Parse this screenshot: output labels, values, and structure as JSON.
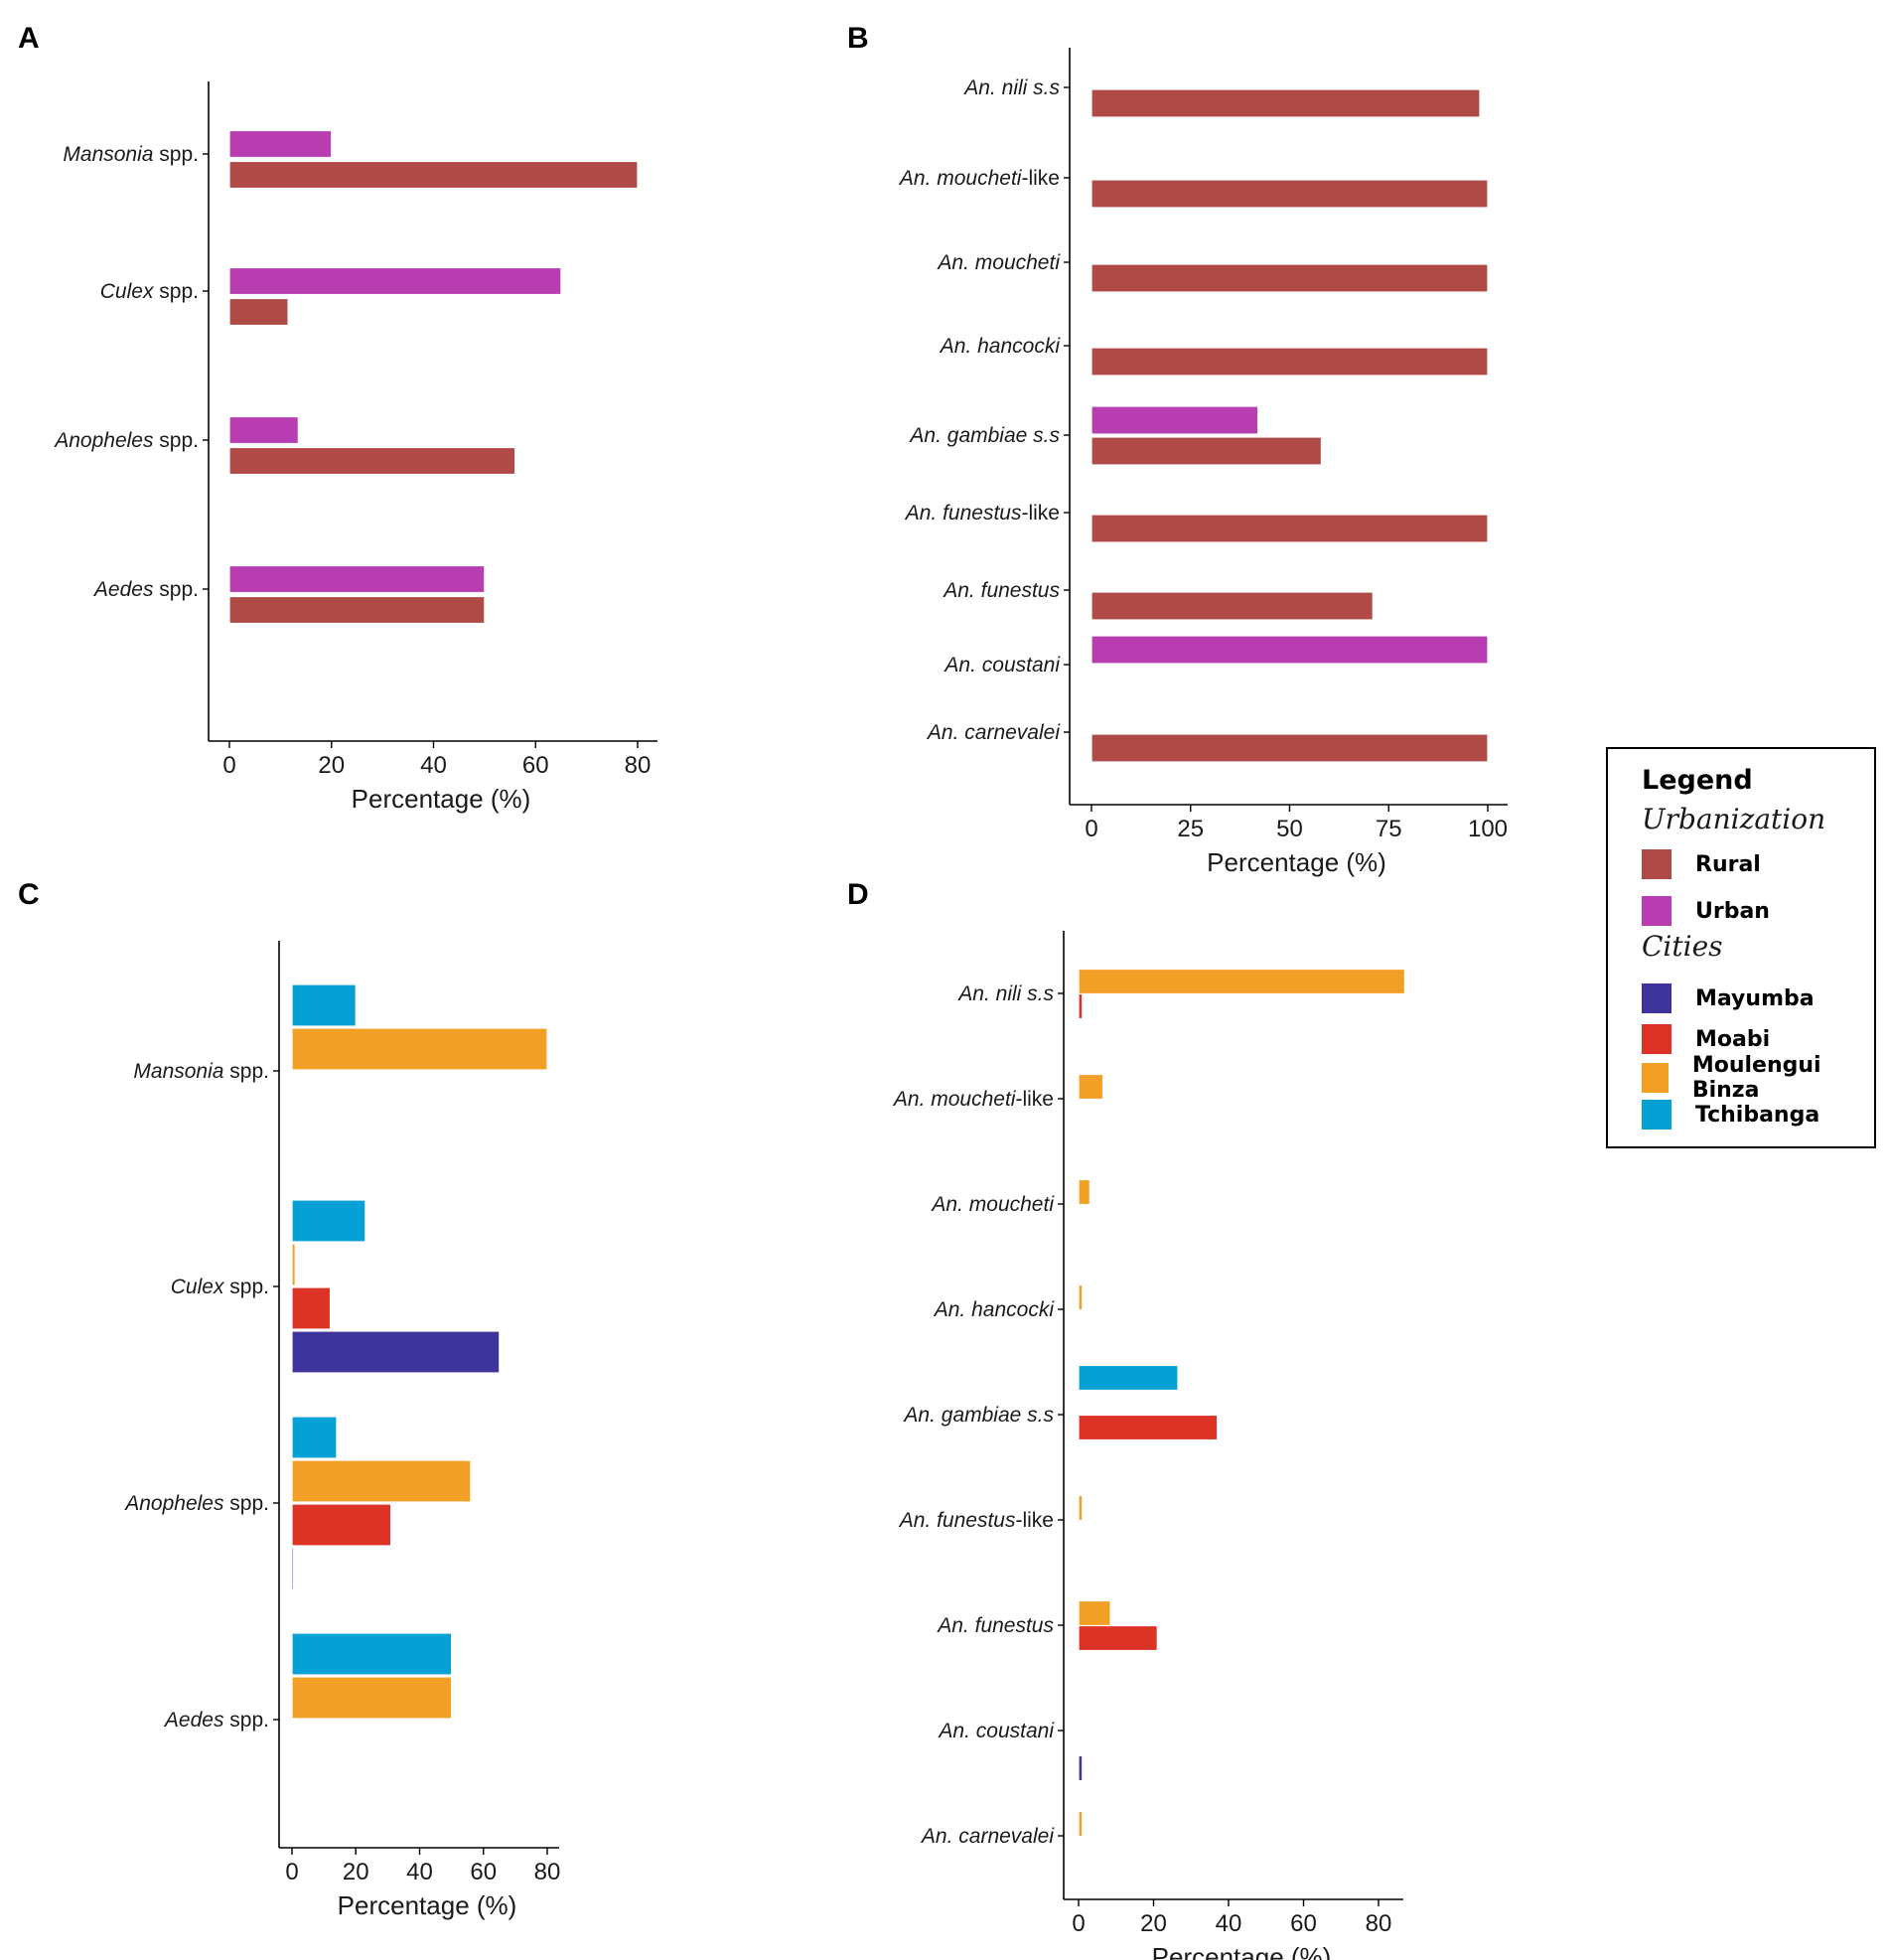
{
  "colors": {
    "Rural": "#b04a46",
    "Urban": "#b83db0",
    "Mayumba": "#3e349b",
    "Moabi": "#dd3327",
    "Moulengui Binza": "#f29f26",
    "Tchibanga": "#06a1d4"
  },
  "legend": {
    "title": "Legend",
    "groups": [
      {
        "title": "Urbanization",
        "items": [
          "Rural",
          "Urban"
        ]
      },
      {
        "title": "Cities",
        "items": [
          "Mayumba",
          "Moabi",
          "Moulengui Binza",
          "Tchibanga"
        ]
      }
    ]
  },
  "chart_data": [
    {
      "panel": "A",
      "type": "bar",
      "orientation": "horizontal",
      "xlabel": "Percentage (%)",
      "xlim": [
        0,
        82
      ],
      "xticks": [
        0,
        20,
        40,
        60,
        80
      ],
      "categories": [
        {
          "genus": "Mansonia",
          "suffix": " spp."
        },
        {
          "genus": "Culex",
          "suffix": " spp."
        },
        {
          "genus": "Anopheles",
          "suffix": " spp."
        },
        {
          "genus": "Aedes",
          "suffix": " spp."
        }
      ],
      "series": [
        {
          "name": "Urban",
          "values": [
            20,
            65,
            13.5,
            50
          ]
        },
        {
          "name": "Rural",
          "values": [
            80,
            11.5,
            56,
            50
          ]
        }
      ]
    },
    {
      "panel": "B",
      "type": "bar",
      "orientation": "horizontal",
      "xlabel": "Percentage (%)",
      "xlim": [
        0,
        102
      ],
      "xticks": [
        0,
        25,
        50,
        75,
        100
      ],
      "categories": [
        {
          "genus": "An. nili s.s",
          "suffix": ""
        },
        {
          "genus": "An. moucheti",
          "suffix": "-like"
        },
        {
          "genus": "An. moucheti",
          "suffix": ""
        },
        {
          "genus": "An. hancocki",
          "suffix": ""
        },
        {
          "genus": "An. gambiae s.s",
          "suffix": ""
        },
        {
          "genus": "An. funestus",
          "suffix": "-like"
        },
        {
          "genus": "An. funestus",
          "suffix": ""
        },
        {
          "genus": "An. coustani",
          "suffix": ""
        },
        {
          "genus": "An. carnevalei",
          "suffix": ""
        }
      ],
      "series": [
        {
          "name": "Urban",
          "values": [
            0,
            0,
            0,
            0,
            42,
            0,
            0,
            100,
            0
          ]
        },
        {
          "name": "Rural",
          "values": [
            98,
            100,
            100,
            100,
            58,
            100,
            71,
            0,
            100
          ]
        }
      ]
    },
    {
      "panel": "C",
      "type": "bar",
      "orientation": "horizontal",
      "xlabel": "Percentage (%)",
      "xlim": [
        0,
        84
      ],
      "xticks": [
        0,
        20,
        40,
        60,
        80
      ],
      "categories": [
        {
          "genus": "Mansonia",
          "suffix": " spp."
        },
        {
          "genus": "Culex",
          "suffix": " spp."
        },
        {
          "genus": "Anopheles",
          "suffix": " spp."
        },
        {
          "genus": "Aedes",
          "suffix": " spp."
        }
      ],
      "series": [
        {
          "name": "Tchibanga",
          "values": [
            20,
            23,
            14,
            50
          ]
        },
        {
          "name": "Moulengui Binza",
          "values": [
            80,
            1,
            56,
            50
          ]
        },
        {
          "name": "Moabi",
          "values": [
            0,
            12,
            31,
            0
          ]
        },
        {
          "name": "Mayumba",
          "values": [
            0,
            65,
            0.5,
            0
          ]
        }
      ]
    },
    {
      "panel": "D",
      "type": "bar",
      "orientation": "horizontal",
      "xlabel": "Percentage (%)",
      "xlim": [
        0,
        87
      ],
      "xticks": [
        0,
        20,
        40,
        60,
        80
      ],
      "categories": [
        {
          "genus": "An. nili s.s",
          "suffix": ""
        },
        {
          "genus": "An. moucheti",
          "suffix": "-like"
        },
        {
          "genus": "An. moucheti",
          "suffix": ""
        },
        {
          "genus": "An. hancocki",
          "suffix": ""
        },
        {
          "genus": "An. gambiae s.s",
          "suffix": ""
        },
        {
          "genus": "An. funestus",
          "suffix": "-like"
        },
        {
          "genus": "An. funestus",
          "suffix": ""
        },
        {
          "genus": "An. coustani",
          "suffix": ""
        },
        {
          "genus": "An. carnevalei",
          "suffix": ""
        }
      ],
      "series": [
        {
          "name": "Tchibanga",
          "values": [
            0,
            0,
            0,
            0,
            26.5,
            0,
            0,
            0,
            0
          ]
        },
        {
          "name": "Moulengui Binza",
          "values": [
            87,
            6.5,
            3,
            1,
            0,
            1,
            8.5,
            0,
            1
          ]
        },
        {
          "name": "Moabi",
          "values": [
            1,
            0,
            0,
            0,
            37,
            0,
            21,
            0,
            0
          ]
        },
        {
          "name": "Mayumba",
          "values": [
            0,
            0,
            0,
            0,
            0,
            0,
            0,
            1,
            0
          ]
        }
      ]
    }
  ]
}
